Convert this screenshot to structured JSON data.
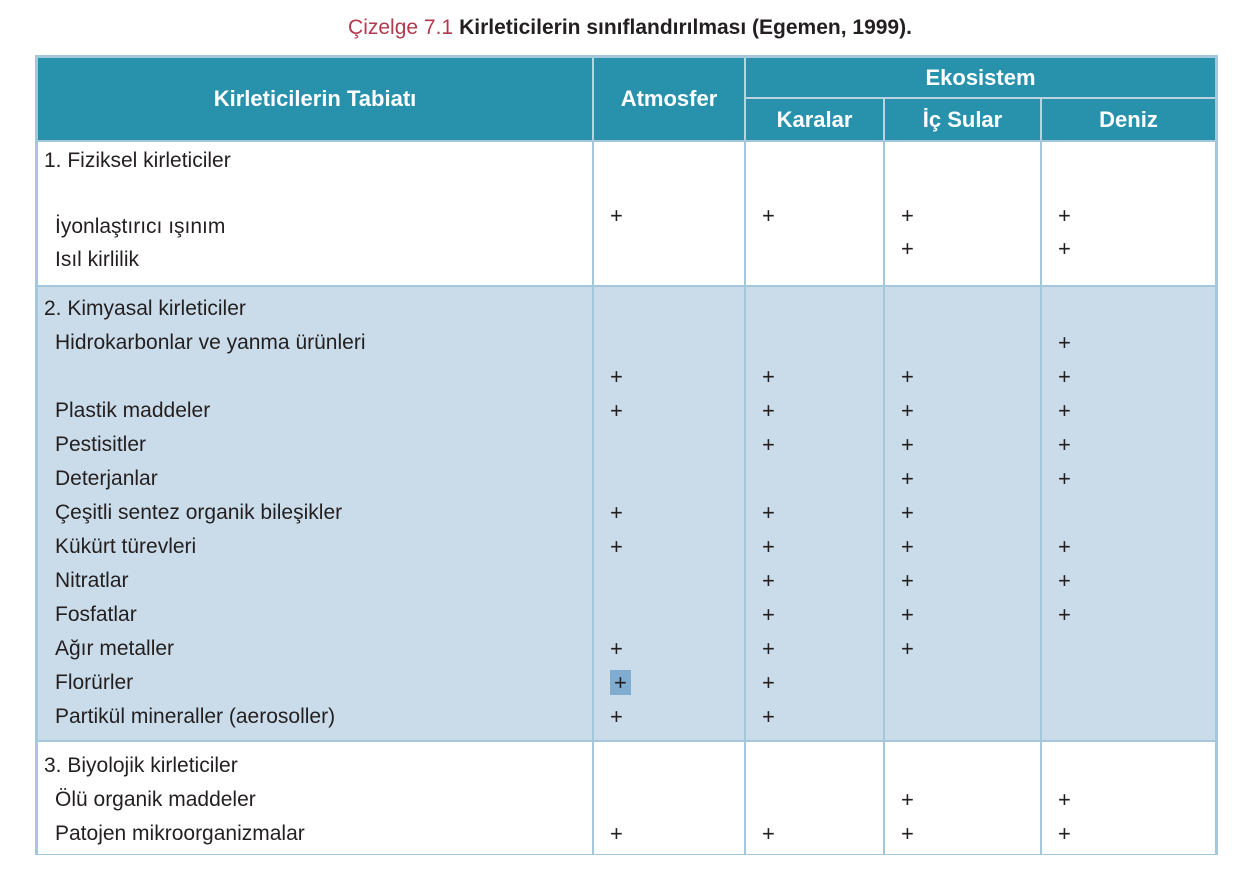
{
  "caption": {
    "label": "Çizelge 7.1",
    "text": "Kirleticilerin sınıflandırılması (Egemen, 1999)."
  },
  "table": {
    "header": {
      "nature": "Kirleticilerin Tabiatı",
      "atmosphere": "Atmosfer",
      "ecosystem": "Ekosistem",
      "sub": [
        "Karalar",
        "İç Sular",
        "Deniz"
      ]
    },
    "columns": [
      "Atmosfer",
      "Karalar",
      "İç Sular",
      "Deniz"
    ],
    "plus_symbol": "+",
    "sections": [
      {
        "id": "physical",
        "title": "1. Fiziksel kirleticiler",
        "rows": [
          {
            "type": "header",
            "label": "1. Fiziksel kirleticiler",
            "marks": [
              "",
              "",
              "",
              ""
            ]
          },
          {
            "type": "blank",
            "label": "",
            "marks": [
              "",
              "",
              "",
              ""
            ]
          },
          {
            "type": "item",
            "label": "İyonlaştırıcı ışınım",
            "marks": [
              "+",
              "+",
              "+",
              "+"
            ]
          },
          {
            "type": "item",
            "label": "Isıl kirlilik",
            "marks": [
              "",
              "",
              "+",
              "+"
            ]
          }
        ]
      },
      {
        "id": "chemical",
        "title": "2. Kimyasal kirleticiler",
        "rows": [
          {
            "type": "header",
            "label": "2. Kimyasal kirleticiler",
            "marks": [
              "",
              "",
              "",
              ""
            ]
          },
          {
            "type": "item",
            "label": "Hidrokarbonlar ve yanma ürünleri",
            "marks": [
              "",
              "",
              "",
              "+"
            ]
          },
          {
            "type": "blank",
            "label": "",
            "marks": [
              "+",
              "+",
              "+",
              "+"
            ]
          },
          {
            "type": "item",
            "label": "Plastik maddeler",
            "marks": [
              "+",
              "+",
              "+",
              "+"
            ]
          },
          {
            "type": "item",
            "label": "Pestisitler",
            "marks": [
              "",
              "+",
              "+",
              "+"
            ]
          },
          {
            "type": "item",
            "label": "Deterjanlar",
            "marks": [
              "",
              "",
              "+",
              "+"
            ]
          },
          {
            "type": "item",
            "label": "Çeşitli sentez organik bileşikler",
            "marks": [
              "+",
              "+",
              "+",
              ""
            ]
          },
          {
            "type": "item",
            "label": "Kükürt türevleri",
            "marks": [
              "+",
              "+",
              "+",
              "+"
            ]
          },
          {
            "type": "item",
            "label": "Nitratlar",
            "marks": [
              "",
              "+",
              "+",
              "+"
            ]
          },
          {
            "type": "item",
            "label": "Fosfatlar",
            "marks": [
              "",
              "+",
              "+",
              "+"
            ]
          },
          {
            "type": "item",
            "label": "Ağır metaller",
            "marks": [
              "+",
              "+",
              "+",
              ""
            ]
          },
          {
            "type": "item",
            "label": "Florürler",
            "marks": [
              "+",
              "+",
              "",
              ""
            ],
            "highlighted_mark": 0
          },
          {
            "type": "item",
            "label": "Partikül mineraller (aerosoller)",
            "marks": [
              "+",
              "+",
              "",
              ""
            ]
          }
        ]
      },
      {
        "id": "biological",
        "title": "3. Biyolojik kirleticiler",
        "rows": [
          {
            "type": "header",
            "label": "3. Biyolojik kirleticiler",
            "marks": [
              "",
              "",
              "",
              ""
            ]
          },
          {
            "type": "item",
            "label": "Ölü organik maddeler",
            "marks": [
              "",
              "",
              "+",
              "+"
            ]
          },
          {
            "type": "item",
            "label": "Patojen mikroorganizmalar",
            "marks": [
              "+",
              "+",
              "+",
              "+"
            ]
          }
        ]
      }
    ]
  }
}
